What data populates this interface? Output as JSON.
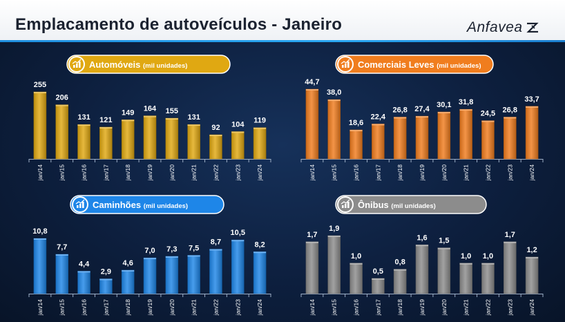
{
  "header": {
    "title": "Emplacamento de autoveículos - Janeiro",
    "brand": "Anfavea"
  },
  "colors": {
    "automoveis": "#e0a812",
    "comerciais": "#f07d1e",
    "caminhoes": "#1e86e8",
    "onibus": "#8c8c8c"
  },
  "chart_data": [
    {
      "type": "bar",
      "title": "Automóveis",
      "unit_label": "(mil unidades)",
      "categories": [
        "jan/14",
        "jan/15",
        "jan/16",
        "jan/17",
        "jan/18",
        "jan/19",
        "jan/20",
        "jan/21",
        "jan/22",
        "jan/23",
        "jan/24"
      ],
      "values": [
        255,
        206,
        131,
        121,
        149,
        164,
        155,
        131,
        92,
        104,
        119
      ],
      "labels": [
        "255",
        "206",
        "131",
        "121",
        "149",
        "164",
        "155",
        "131",
        "92",
        "104",
        "119"
      ],
      "ylim": [
        0,
        255
      ]
    },
    {
      "type": "bar",
      "title": "Comerciais Leves",
      "unit_label": "(mil unidades)",
      "categories": [
        "jan/14",
        "jan/15",
        "jan/16",
        "jan/17",
        "jan/18",
        "jan/19",
        "jan/20",
        "jan/21",
        "jan/22",
        "jan/23",
        "jan/24"
      ],
      "values": [
        44.7,
        38.0,
        18.6,
        22.4,
        26.8,
        27.4,
        30.1,
        31.8,
        24.5,
        26.8,
        33.7
      ],
      "labels": [
        "44,7",
        "38,0",
        "18,6",
        "22,4",
        "26,8",
        "27,4",
        "30,1",
        "31,8",
        "24,5",
        "26,8",
        "33,7"
      ],
      "ylim": [
        0,
        44.7
      ]
    },
    {
      "type": "bar",
      "title": "Caminhões",
      "unit_label": "(mil unidades)",
      "categories": [
        "jan/14",
        "jan/15",
        "jan/16",
        "jan/17",
        "jan/18",
        "jan/19",
        "jan/20",
        "jan/21",
        "jan/22",
        "jan/23",
        "jan/24"
      ],
      "values": [
        10.8,
        7.7,
        4.4,
        2.9,
        4.6,
        7.0,
        7.3,
        7.5,
        8.7,
        10.5,
        8.2
      ],
      "labels": [
        "10,8",
        "7,7",
        "4,4",
        "2,9",
        "4,6",
        "7,0",
        "7,3",
        "7,5",
        "8,7",
        "10,5",
        "8,2"
      ],
      "ylim": [
        0,
        10.8
      ]
    },
    {
      "type": "bar",
      "title": "Ônibus",
      "unit_label": "(mil unidades)",
      "categories": [
        "jan/14",
        "jan/15",
        "jan/16",
        "jan/17",
        "jan/18",
        "jan/19",
        "jan/20",
        "jan/21",
        "jan/22",
        "jan/23",
        "jan/24"
      ],
      "values": [
        1.7,
        1.9,
        1.0,
        0.5,
        0.8,
        1.6,
        1.5,
        1.0,
        1.0,
        1.7,
        1.2
      ],
      "labels": [
        "1,7",
        "1,9",
        "1,0",
        "0,5",
        "0,8",
        "1,6",
        "1,5",
        "1,0",
        "1,0",
        "1,7",
        "1,2"
      ],
      "ylim": [
        0,
        1.9
      ]
    }
  ]
}
